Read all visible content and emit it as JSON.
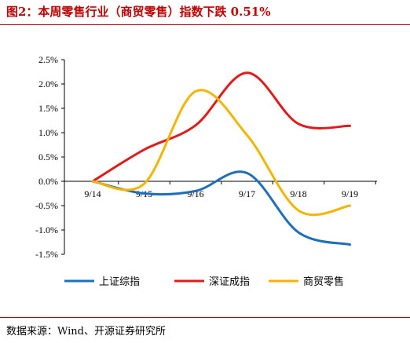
{
  "figure": {
    "title": "图2：本周零售行业（商贸零售）指数下跌 0.51%",
    "source": "数据来源：Wind、开源证券研究所",
    "title_color": "#c00000"
  },
  "chart_data": {
    "type": "line",
    "title": "",
    "xlabel": "",
    "ylabel": "",
    "categories": [
      "9/14",
      "9/15",
      "9/16",
      "9/17",
      "9/18",
      "9/19"
    ],
    "y_ticks": [
      "2.5%",
      "2.0%",
      "1.5%",
      "1.0%",
      "0.5%",
      "0.0%",
      "-0.5%",
      "-1.0%",
      "-1.5%"
    ],
    "ylim": [
      -1.5,
      2.5
    ],
    "grid": false,
    "legend_position": "bottom",
    "smooth": true,
    "series": [
      {
        "name": "上证综指",
        "color": "#1f6fb8",
        "values": [
          0.0,
          -0.25,
          -0.2,
          0.17,
          -1.05,
          -1.3
        ]
      },
      {
        "name": "深证成指",
        "color": "#e11b1b",
        "values": [
          0.0,
          0.65,
          1.15,
          2.23,
          1.18,
          1.14
        ]
      },
      {
        "name": "商贸零售",
        "color": "#f5b400",
        "values": [
          0.0,
          -0.05,
          1.85,
          0.95,
          -0.6,
          -0.5
        ]
      }
    ]
  }
}
